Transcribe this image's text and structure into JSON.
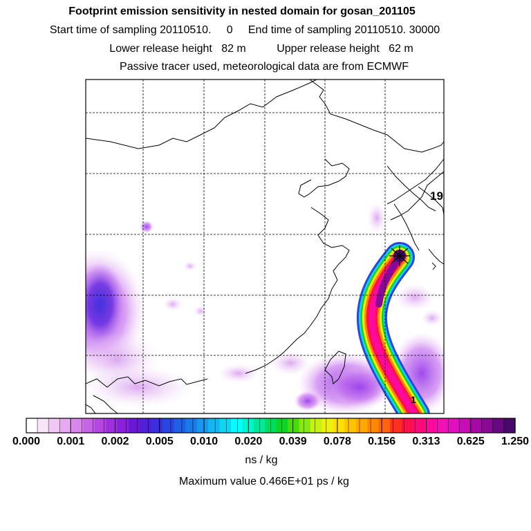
{
  "chart_data": {
    "type": "heatmap",
    "title": "Footprint emission sensitivity in nested domain for gosan_201105",
    "sampling": {
      "start_label": "Start time of sampling",
      "start_value": "20110510.     0",
      "end_label": "End time of sampling",
      "end_value": "20110510. 30000"
    },
    "release": {
      "lower_label": "Lower release height",
      "lower_value": "82 m",
      "upper_label": "Upper release height",
      "upper_value": "62 m"
    },
    "note": "Passive tracer used, meteorological data are from ECMWF",
    "map_labels": [
      "19",
      "1"
    ],
    "colorbar": {
      "tick_labels": [
        "0.000",
        "0.001",
        "0.002",
        "0.005",
        "0.010",
        "0.020",
        "0.039",
        "0.078",
        "0.156",
        "0.313",
        "0.625",
        "1.250"
      ],
      "units": "ns / kg",
      "colors": [
        "#ffffff",
        "#f8e4f8",
        "#f0c8f4",
        "#e6a8f0",
        "#d886ec",
        "#c864e8",
        "#b646e4",
        "#a02ee0",
        "#8a20dc",
        "#6a18d8",
        "#5020d8",
        "#3b30dc",
        "#2a46e0",
        "#2060e4",
        "#1a7ae8",
        "#1898ec",
        "#14b6f0",
        "#10d4f2",
        "#00ffff",
        "#00f4d0",
        "#00e898",
        "#00dc5c",
        "#10d424",
        "#48dc10",
        "#88e810",
        "#c8f010",
        "#f0f010",
        "#ffe000",
        "#ffc400",
        "#ffa800",
        "#ff8800",
        "#ff6410",
        "#ff3020",
        "#ff1048",
        "#ff0878",
        "#ff0aa0",
        "#f010b4",
        "#e010c0",
        "#c80cb8",
        "#a808a8",
        "#880898",
        "#680880",
        "#48086a"
      ]
    },
    "maximum_text": "Maximum value  0.466E+01 ps / kg"
  }
}
